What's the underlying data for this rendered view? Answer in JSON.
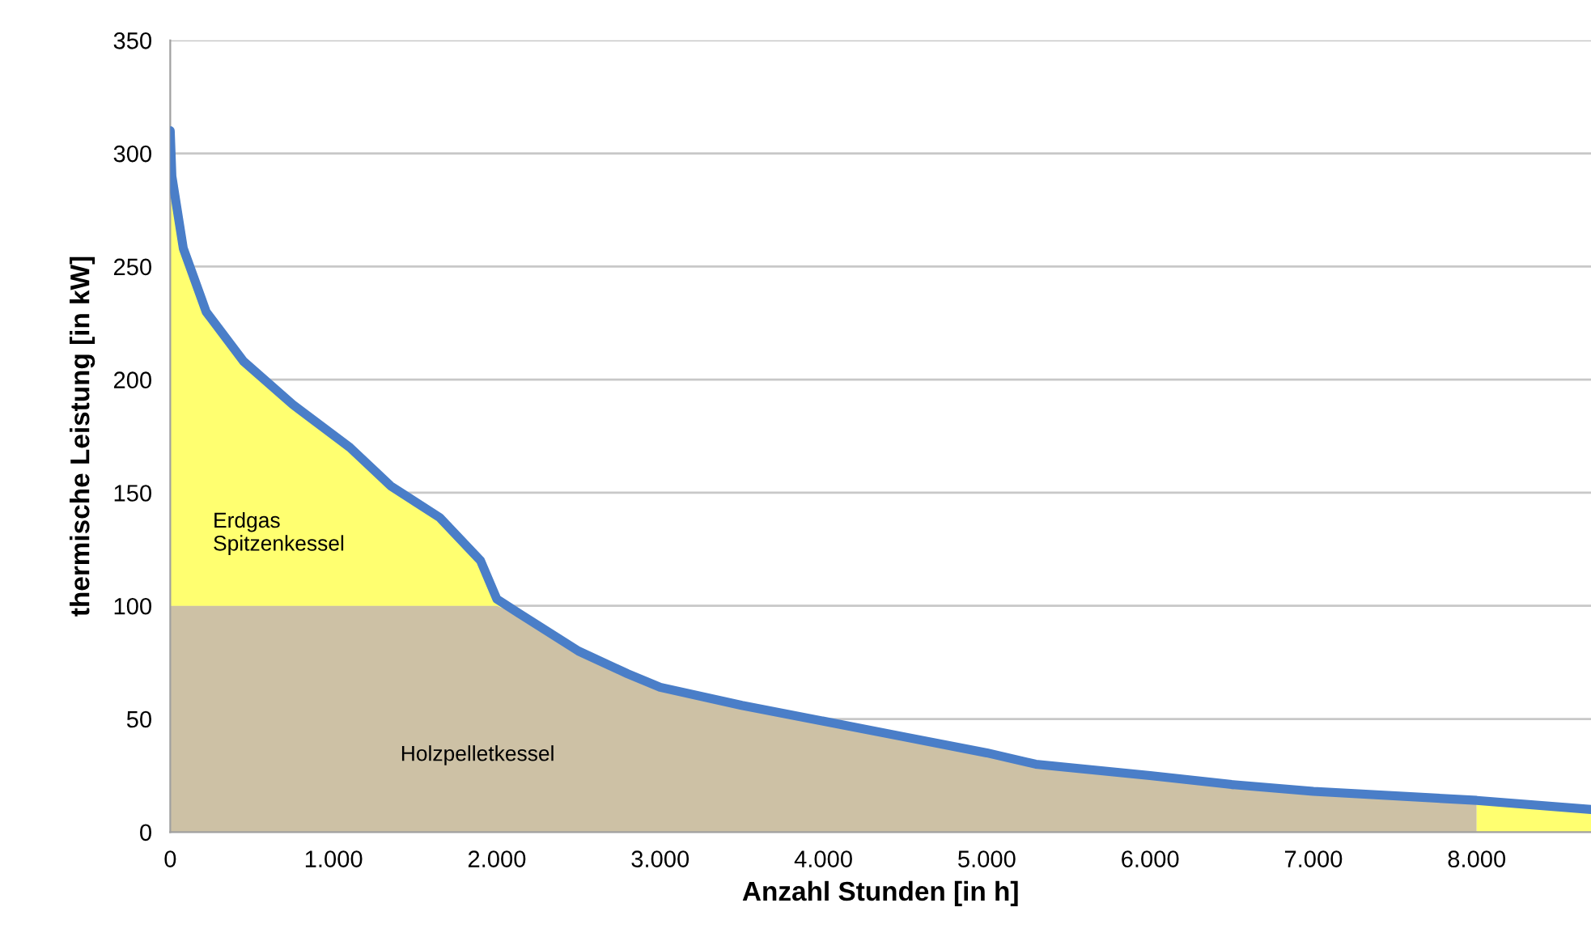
{
  "chart_data": {
    "type": "area",
    "stacked": true,
    "xlabel": "Anzahl Stunden [in h]",
    "ylabel": "thermische Leistung [in kW]",
    "xlim": [
      0,
      8700
    ],
    "ylim": [
      0,
      350
    ],
    "xticks": [
      0,
      {
        "value": 1000,
        "label": "1.000"
      },
      {
        "value": 2000,
        "label": "2.000"
      },
      {
        "value": 3000,
        "label": "3.000"
      },
      {
        "value": 4000,
        "label": "4.000"
      },
      {
        "value": 5000,
        "label": "5.000"
      },
      {
        "value": 6000,
        "label": "6.000"
      },
      {
        "value": 7000,
        "label": "7.000"
      },
      {
        "value": 8000,
        "label": "8.000"
      }
    ],
    "yticks": [
      0,
      50,
      100,
      150,
      200,
      250,
      300,
      350
    ],
    "grid": "y",
    "x": [
      0,
      10,
      80,
      220,
      450,
      750,
      1100,
      1350,
      1650,
      1900,
      2000,
      2150,
      2500,
      2800,
      3000,
      3500,
      4000,
      4500,
      5000,
      5300,
      6000,
      6500,
      7000,
      8000,
      8000,
      8700
    ],
    "series": [
      {
        "color": "#cdc1a5",
        "values": [
          100,
          100,
          100,
          100,
          100,
          100,
          100,
          100,
          100,
          100,
          100,
          96,
          80,
          70,
          64,
          56,
          49,
          42,
          35,
          30,
          25,
          21,
          18,
          14,
          0,
          0
        ]
      },
      {
        "color": "#ffff70",
        "values": [
          210,
          190,
          158,
          130,
          108,
          89,
          70,
          53,
          39,
          20,
          3,
          0,
          0,
          0,
          0,
          0,
          0,
          0,
          0,
          0,
          0,
          0,
          0,
          0,
          14,
          10
        ]
      },
      {
        "type": "line",
        "color": "#4a7ec8",
        "x": [
          0,
          10,
          80,
          220,
          450,
          750,
          1100,
          1350,
          1650,
          1900,
          2000,
          2150,
          2500,
          2800,
          3000,
          3500,
          4000,
          4500,
          5000,
          5300,
          6000,
          6500,
          7000,
          8000,
          8700
        ],
        "values": [
          310,
          290,
          258,
          230,
          208,
          189,
          170,
          153,
          139,
          120,
          103,
          96,
          80,
          70,
          64,
          56,
          49,
          42,
          35,
          30,
          25,
          21,
          18,
          14,
          10
        ]
      }
    ],
    "annotations": [
      "Erdgas\nSpitzenkessel",
      "Holzpelletkessel"
    ]
  }
}
